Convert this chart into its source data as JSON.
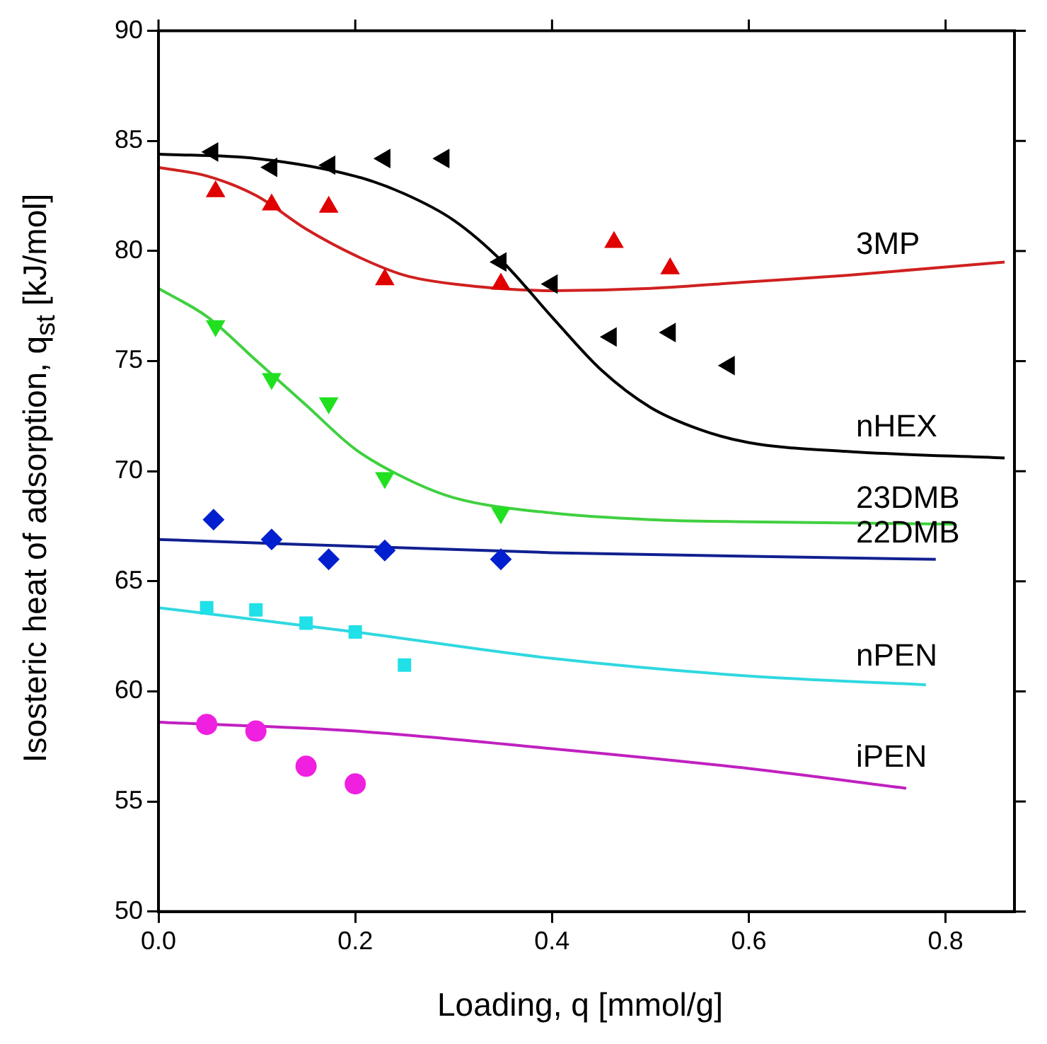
{
  "chart_data": {
    "type": "scatter",
    "xlabel": "Loading, q [mmol/g]",
    "ylabel": "Isosteric heat of adsorption, q$_{st}$ [kJ/mol]",
    "xlim": [
      0,
      0.87
    ],
    "xticks": [
      {
        "value": 0,
        "label": "0.0"
      },
      0.2,
      0.4,
      0.6,
      0.8
    ],
    "ylim": [
      50,
      90
    ],
    "yticks": [
      50,
      55,
      60,
      65,
      70,
      75,
      80,
      85,
      90
    ],
    "grid": false,
    "legend": false,
    "series": [
      {
        "marker": "triangle-left",
        "color": "#000000",
        "x": [
          0.055,
          0.115,
          0.174,
          0.23,
          0.29,
          0.348,
          0.4,
          0.46,
          0.52,
          0.58
        ],
        "values": [
          84.5,
          83.8,
          83.9,
          84.2,
          84.2,
          79.5,
          78.5,
          76.1,
          76.3,
          74.8
        ]
      },
      {
        "type": "line",
        "name": "nHEX",
        "marker": "none",
        "color": "#000000",
        "x": [
          0,
          0.1,
          0.2,
          0.25,
          0.3,
          0.35,
          0.4,
          0.45,
          0.5,
          0.55,
          0.6,
          0.7,
          0.86
        ],
        "values": [
          84.4,
          84.2,
          83.4,
          82.6,
          81.4,
          79.5,
          77.0,
          74.6,
          72.9,
          71.9,
          71.3,
          70.9,
          70.6
        ]
      },
      {
        "marker": "triangle",
        "color": "#e00000",
        "x": [
          0.058,
          0.115,
          0.173,
          0.23,
          0.348,
          0.463,
          0.52
        ],
        "values": [
          82.7,
          82.1,
          82.0,
          78.7,
          78.5,
          80.4,
          79.2
        ]
      },
      {
        "type": "line",
        "name": "3MP",
        "marker": "none",
        "color": "#d02020",
        "x": [
          0,
          0.05,
          0.1,
          0.15,
          0.2,
          0.25,
          0.3,
          0.4,
          0.5,
          0.6,
          0.7,
          0.86
        ],
        "values": [
          83.8,
          83.4,
          82.5,
          81.0,
          79.8,
          78.9,
          78.5,
          78.2,
          78.3,
          78.6,
          78.9,
          79.5
        ]
      },
      {
        "marker": "triangle-down",
        "color": "#20e020",
        "x": [
          0.058,
          0.115,
          0.173,
          0.23,
          0.348
        ],
        "values": [
          76.6,
          74.2,
          73.1,
          69.7,
          68.1
        ]
      },
      {
        "type": "line",
        "name": "23DMB",
        "marker": "none",
        "color": "#40d040",
        "x": [
          0,
          0.05,
          0.1,
          0.15,
          0.2,
          0.25,
          0.3,
          0.4,
          0.5,
          0.6,
          0.81
        ],
        "values": [
          78.3,
          77.0,
          75.0,
          73.0,
          71.0,
          69.7,
          68.8,
          68.1,
          67.8,
          67.7,
          67.6
        ]
      },
      {
        "marker": "diamond",
        "color": "#0020d0",
        "x": [
          0.056,
          0.115,
          0.173,
          0.23,
          0.348
        ],
        "values": [
          67.8,
          66.9,
          66.0,
          66.4,
          66.0
        ]
      },
      {
        "type": "line",
        "name": "22DMB",
        "marker": "none",
        "color": "#102090",
        "x": [
          0,
          0.4,
          0.79
        ],
        "values": [
          66.9,
          66.3,
          66.0
        ]
      },
      {
        "marker": "square",
        "color": "#20e0e8",
        "x": [
          0.049,
          0.099,
          0.15,
          0.2,
          0.25
        ],
        "values": [
          63.8,
          63.7,
          63.1,
          62.7,
          61.2
        ]
      },
      {
        "type": "line",
        "name": "nPEN",
        "marker": "none",
        "color": "#30d8e0",
        "x": [
          0,
          0.2,
          0.4,
          0.6,
          0.78
        ],
        "values": [
          63.8,
          62.7,
          61.5,
          60.7,
          60.3
        ]
      },
      {
        "marker": "circle",
        "color": "#f020e0",
        "x": [
          0.049,
          0.099,
          0.15,
          0.2
        ],
        "values": [
          58.5,
          58.2,
          56.6,
          55.8
        ]
      },
      {
        "type": "line",
        "name": "iPEN",
        "marker": "none",
        "color": "#c020c0",
        "x": [
          0,
          0.2,
          0.4,
          0.6,
          0.76
        ],
        "values": [
          58.6,
          58.2,
          57.4,
          56.5,
          55.6
        ]
      }
    ]
  }
}
